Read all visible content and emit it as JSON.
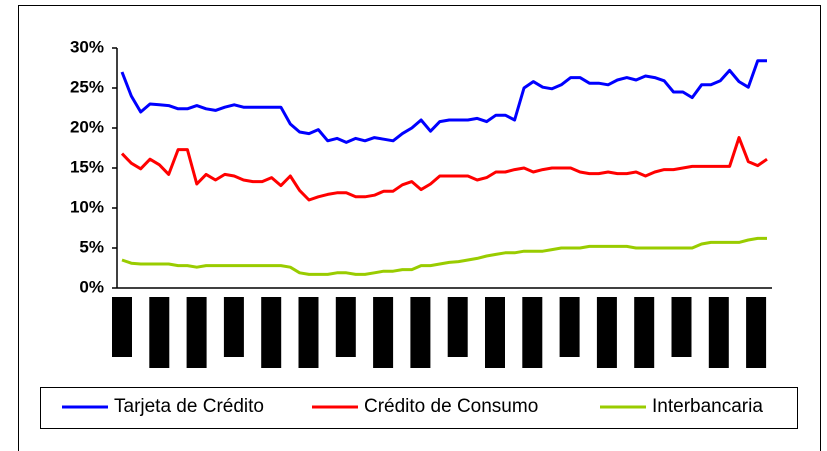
{
  "chart_data": {
    "type": "line",
    "x": [
      null,
      null,
      null,
      null,
      null,
      null,
      null,
      null,
      null,
      null,
      null,
      null,
      null,
      null,
      null,
      null,
      null,
      null,
      null,
      null,
      null,
      null,
      null,
      null,
      null,
      null,
      null,
      null,
      null,
      null,
      null,
      null,
      null,
      null,
      null,
      null,
      null,
      null,
      null,
      null,
      null,
      null,
      null,
      null,
      null,
      null,
      null,
      null,
      null,
      null,
      null,
      null,
      null,
      null,
      null,
      null,
      null,
      null,
      null,
      null,
      null,
      null,
      null,
      null,
      null,
      null,
      null,
      null,
      null,
      null
    ],
    "series": [
      {
        "name": "Tarjeta de Crédito",
        "color": "#0000ff",
        "values": [
          27,
          24,
          22,
          23,
          22.9,
          22.8,
          22.4,
          22.4,
          22.8,
          22.4,
          22.2,
          22.6,
          22.9,
          22.6,
          22.6,
          22.6,
          22.6,
          22.6,
          20.5,
          19.5,
          19.3,
          19.8,
          18.4,
          18.7,
          18.2,
          18.7,
          18.4,
          18.8,
          18.6,
          18.4,
          19.3,
          20,
          21,
          19.6,
          20.8,
          21,
          21,
          21,
          21.2,
          20.8,
          21.6,
          21.6,
          21,
          25,
          25.8,
          25.1,
          24.9,
          25.4,
          26.3,
          26.3,
          25.6,
          25.6,
          25.4,
          26,
          26.3,
          26,
          26.5,
          26.3,
          25.9,
          24.5,
          24.5,
          23.8,
          25.4,
          25.4,
          25.9,
          27.2,
          25.8,
          25.1,
          28.4,
          28.4
        ]
      },
      {
        "name": "Crédito de Consumo",
        "color": "#ff0000",
        "values": [
          16.8,
          15.6,
          14.9,
          16.1,
          15.4,
          14.2,
          17.3,
          17.3,
          13,
          14.2,
          13.5,
          14.2,
          14,
          13.5,
          13.3,
          13.3,
          13.8,
          12.8,
          14,
          12.2,
          11,
          11.4,
          11.7,
          11.9,
          11.9,
          11.4,
          11.4,
          11.6,
          12.1,
          12.1,
          12.9,
          13.3,
          12.3,
          13,
          14,
          14,
          14,
          14,
          13.5,
          13.8,
          14.5,
          14.5,
          14.8,
          15,
          14.5,
          14.8,
          15,
          15,
          15,
          14.5,
          14.3,
          14.3,
          14.5,
          14.3,
          14.3,
          14.5,
          14,
          14.5,
          14.8,
          14.8,
          15,
          15.2,
          15.2,
          15.2,
          15.2,
          15.2,
          18.8,
          15.8,
          15.3,
          16.1
        ]
      },
      {
        "name": "Interbancaria",
        "color": "#99cc00",
        "values": [
          3.5,
          3.1,
          3,
          3,
          3,
          3,
          2.8,
          2.8,
          2.6,
          2.8,
          2.8,
          2.8,
          2.8,
          2.8,
          2.8,
          2.8,
          2.8,
          2.8,
          2.6,
          1.9,
          1.7,
          1.7,
          1.7,
          1.9,
          1.9,
          1.7,
          1.7,
          1.9,
          2.1,
          2.1,
          2.3,
          2.3,
          2.8,
          2.8,
          3,
          3.2,
          3.3,
          3.5,
          3.7,
          4,
          4.2,
          4.4,
          4.4,
          4.6,
          4.6,
          4.6,
          4.8,
          5,
          5,
          5,
          5.2,
          5.2,
          5.2,
          5.2,
          5.2,
          5,
          5,
          5,
          5,
          5,
          5,
          5,
          5.5,
          5.7,
          5.7,
          5.7,
          5.7,
          6,
          6.2,
          6.2
        ]
      }
    ],
    "ylim": [
      0,
      30
    ],
    "yticks": [
      {
        "value": 0,
        "label": "0%"
      },
      {
        "value": 5,
        "label": "5%"
      },
      {
        "value": 10,
        "label": "10%"
      },
      {
        "value": 15,
        "label": "15%"
      },
      {
        "value": 20,
        "label": "20%"
      },
      {
        "value": 25,
        "label": "25%"
      },
      {
        "value": 30,
        "label": "30%"
      }
    ],
    "legend": "bottom"
  }
}
